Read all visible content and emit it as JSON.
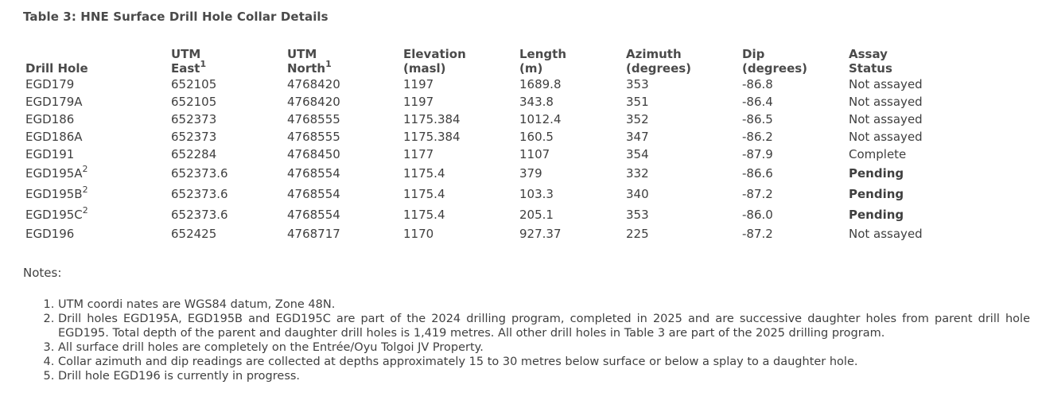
{
  "title": "Table 3: HNE Surface Drill Hole Collar Details",
  "headers": {
    "drill_hole": "Drill Hole",
    "utm_east_a": "UTM",
    "utm_east_b": "East",
    "utm_east_sup": "1",
    "utm_north_a": "UTM",
    "utm_north_b": "North",
    "utm_north_sup": "1",
    "elevation_a": "Elevation",
    "elevation_b": "(masl)",
    "length_a": "Length",
    "length_b": "(m)",
    "azimuth_a": "Azimuth",
    "azimuth_b": "(degrees)",
    "dip_a": "Dip",
    "dip_b": "(degrees)",
    "assay_a": "Assay",
    "assay_b": "Status"
  },
  "rows": [
    {
      "hole": "EGD179",
      "sup": "",
      "east": "652105",
      "north": "4768420",
      "elevation": "1197",
      "length": "1689.8",
      "azimuth": "353",
      "dip": "-86.8",
      "status": "Not assayed",
      "status_bold": false
    },
    {
      "hole": "EGD179A",
      "sup": "",
      "east": "652105",
      "north": "4768420",
      "elevation": "1197",
      "length": "343.8",
      "azimuth": "351",
      "dip": "-86.4",
      "status": "Not assayed",
      "status_bold": false
    },
    {
      "hole": "EGD186",
      "sup": "",
      "east": "652373",
      "north": "4768555",
      "elevation": "1175.384",
      "length": "1012.4",
      "azimuth": "352",
      "dip": "-86.5",
      "status": "Not assayed",
      "status_bold": false
    },
    {
      "hole": "EGD186A",
      "sup": "",
      "east": "652373",
      "north": "4768555",
      "elevation": "1175.384",
      "length": "160.5",
      "azimuth": "347",
      "dip": "-86.2",
      "status": "Not assayed",
      "status_bold": false
    },
    {
      "hole": "EGD191",
      "sup": "",
      "east": "652284",
      "north": "4768450",
      "elevation": "1177",
      "length": "1107",
      "azimuth": "354",
      "dip": "-87.9",
      "status": "Complete",
      "status_bold": false
    },
    {
      "hole": "EGD195A",
      "sup": "2",
      "east": "652373.6",
      "north": "4768554",
      "elevation": "1175.4",
      "length": "379",
      "azimuth": "332",
      "dip": "-86.6",
      "status": "Pending",
      "status_bold": true
    },
    {
      "hole": "EGD195B",
      "sup": "2",
      "east": "652373.6",
      "north": "4768554",
      "elevation": "1175.4",
      "length": "103.3",
      "azimuth": "340",
      "dip": "-87.2",
      "status": "Pending",
      "status_bold": true
    },
    {
      "hole": "EGD195C",
      "sup": "2",
      "east": "652373.6",
      "north": "4768554",
      "elevation": "1175.4",
      "length": "205.1",
      "azimuth": "353",
      "dip": "-86.0",
      "status": "Pending",
      "status_bold": true
    },
    {
      "hole": "EGD196",
      "sup": "",
      "east": "652425",
      "north": "4768717",
      "elevation": "1170",
      "length": "927.37",
      "azimuth": "225",
      "dip": "-87.2",
      "status": "Not assayed",
      "status_bold": false
    }
  ],
  "notes_label": "Notes:",
  "notes": [
    "UTM coordi nates are WGS84 datum, Zone 48N.",
    "Drill holes EGD195A, EGD195B and EGD195C are part of the 2024 drilling program, completed in 2025 and are successive daughter holes from parent drill hole EGD195. Total depth of the parent and daughter drill holes is 1,419 metres. All other drill holes in Table 3 are part of the 2025 drilling program.",
    "All surface drill holes are completely on the Entrée/Oyu Tolgoi JV Property.",
    "Collar azimuth and dip readings are collected at depths approximately 15 to 30 metres below surface or below a splay to a daughter hole.",
    "Drill hole EGD196 is currently in progress."
  ]
}
